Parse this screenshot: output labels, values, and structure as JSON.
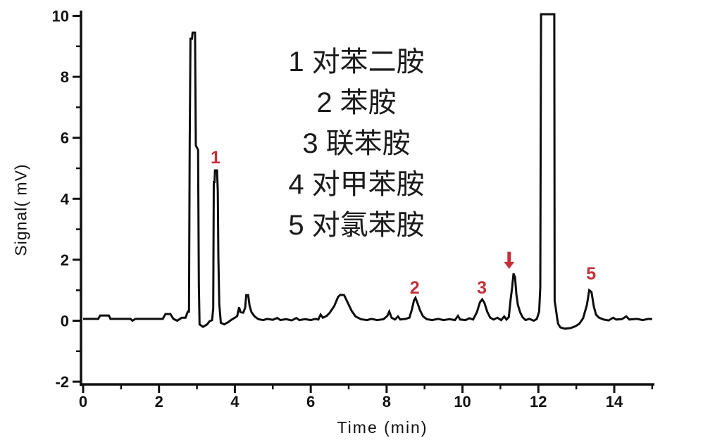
{
  "figure": {
    "background": "#ffffff",
    "trace_color": "#0d0d0d",
    "axis_color": "#111111",
    "annotation_color": "#c43039"
  },
  "legend": {
    "lines": [
      "1 对苯二胺",
      "2 苯胺",
      "3 联苯胺",
      "4 对甲苯胺",
      "5 对氯苯胺"
    ]
  },
  "chart_data": {
    "type": "line",
    "title": "",
    "xlabel": "Time (min)",
    "ylabel": "Signal( mV)",
    "xlim": [
      0,
      15
    ],
    "ylim": [
      -2,
      10
    ],
    "grid": false,
    "legend_position": "upper-center",
    "x_major_ticks": [
      0,
      2,
      4,
      6,
      8,
      10,
      12,
      14
    ],
    "x_minor_ticks": [
      1,
      3,
      5,
      7,
      9,
      11,
      13,
      15
    ],
    "y_major_ticks": [
      -2,
      0,
      2,
      4,
      6,
      8,
      10
    ],
    "y_minor_ticks": [
      -1,
      1,
      3,
      5,
      7,
      9
    ],
    "peaks": [
      {
        "label": "1",
        "compound": "对苯二胺",
        "time_min": 3.5,
        "height_mv": 4.95
      },
      {
        "label": "2",
        "compound": "苯胺",
        "time_min": 8.76,
        "height_mv": 0.75
      },
      {
        "label": "3",
        "compound": "联苯胺",
        "time_min": 10.52,
        "height_mv": 0.7
      },
      {
        "label": "4",
        "compound": "对甲苯胺",
        "time_min": 11.35,
        "height_mv": 1.55
      },
      {
        "label": "5",
        "compound": "对氯苯胺",
        "time_min": 13.35,
        "height_mv": 1.0
      }
    ],
    "unlabeled_major_peaks": [
      {
        "time_min": 2.95,
        "height_mv": 9.45
      },
      {
        "time_min": 12.25,
        "height_mv": "off-scale (>10)"
      }
    ],
    "annotations": [
      {
        "kind": "text",
        "text": "1",
        "t": 3.49,
        "mv": 5.16
      },
      {
        "kind": "text",
        "text": "2",
        "t": 8.74,
        "mv": 0.89
      },
      {
        "kind": "text",
        "text": "3",
        "t": 10.51,
        "mv": 0.89
      },
      {
        "kind": "arrow_down",
        "for_peak": "4",
        "t": 11.23,
        "mv_tip": 1.7,
        "mv_tail": 2.26
      },
      {
        "kind": "text",
        "text": "5",
        "t": 13.39,
        "mv": 1.35
      }
    ],
    "series": [
      {
        "name": "chromatogram",
        "points": [
          [
            0,
            0.06
          ],
          [
            0.4,
            0.06
          ],
          [
            0.45,
            0.17
          ],
          [
            0.68,
            0.17
          ],
          [
            0.72,
            0.06
          ],
          [
            1.25,
            0.06
          ],
          [
            1.3,
            0.0
          ],
          [
            1.38,
            0.06
          ],
          [
            2.1,
            0.06
          ],
          [
            2.17,
            0.22
          ],
          [
            2.3,
            0.22
          ],
          [
            2.38,
            0.06
          ],
          [
            2.48,
            0.0
          ],
          [
            2.6,
            0.1
          ],
          [
            2.7,
            0.1
          ],
          [
            2.76,
            0.3
          ],
          [
            2.79,
            0.3
          ],
          [
            2.81,
            5.75
          ],
          [
            2.83,
            9.25
          ],
          [
            2.87,
            9.25
          ],
          [
            2.885,
            9.45
          ],
          [
            2.95,
            9.45
          ],
          [
            2.97,
            5.75
          ],
          [
            3.03,
            5.6
          ],
          [
            3.05,
            1.2
          ],
          [
            3.07,
            -0.12
          ],
          [
            3.16,
            -0.2
          ],
          [
            3.27,
            -0.12
          ],
          [
            3.33,
            -0.02
          ],
          [
            3.4,
            0.02
          ],
          [
            3.43,
            0.4
          ],
          [
            3.445,
            4.55
          ],
          [
            3.465,
            4.55
          ],
          [
            3.475,
            4.93
          ],
          [
            3.53,
            4.93
          ],
          [
            3.55,
            4.25
          ],
          [
            3.565,
            2.1
          ],
          [
            3.59,
            0.55
          ],
          [
            3.63,
            -0.07
          ],
          [
            3.72,
            -0.12
          ],
          [
            3.82,
            -0.05
          ],
          [
            3.92,
            0.04
          ],
          [
            4.0,
            0.1
          ],
          [
            4.06,
            0.15
          ],
          [
            4.11,
            0.44
          ],
          [
            4.15,
            0.28
          ],
          [
            4.22,
            0.26
          ],
          [
            4.27,
            0.42
          ],
          [
            4.3,
            0.84
          ],
          [
            4.35,
            0.84
          ],
          [
            4.39,
            0.48
          ],
          [
            4.44,
            0.28
          ],
          [
            4.52,
            0.14
          ],
          [
            4.62,
            0.05
          ],
          [
            4.75,
            0.02
          ],
          [
            4.85,
            0.06
          ],
          [
            5.0,
            0.03
          ],
          [
            5.12,
            0.09
          ],
          [
            5.2,
            0.02
          ],
          [
            5.35,
            0.05
          ],
          [
            5.5,
            0.01
          ],
          [
            5.62,
            0.09
          ],
          [
            5.7,
            0.02
          ],
          [
            5.85,
            0.05
          ],
          [
            6.0,
            0.02
          ],
          [
            6.12,
            0.06
          ],
          [
            6.2,
            0.04
          ],
          [
            6.26,
            0.2
          ],
          [
            6.32,
            0.1
          ],
          [
            6.42,
            0.16
          ],
          [
            6.5,
            0.26
          ],
          [
            6.62,
            0.48
          ],
          [
            6.72,
            0.78
          ],
          [
            6.78,
            0.85
          ],
          [
            6.88,
            0.84
          ],
          [
            6.98,
            0.58
          ],
          [
            7.08,
            0.32
          ],
          [
            7.18,
            0.14
          ],
          [
            7.32,
            0.05
          ],
          [
            7.48,
            0.02
          ],
          [
            7.6,
            0.06
          ],
          [
            7.75,
            0.02
          ],
          [
            7.92,
            0.05
          ],
          [
            8.02,
            0.16
          ],
          [
            8.07,
            0.3
          ],
          [
            8.13,
            0.1
          ],
          [
            8.22,
            0.04
          ],
          [
            8.3,
            0.14
          ],
          [
            8.36,
            0.04
          ],
          [
            8.5,
            0.06
          ],
          [
            8.6,
            0.1
          ],
          [
            8.67,
            0.38
          ],
          [
            8.72,
            0.66
          ],
          [
            8.76,
            0.75
          ],
          [
            8.82,
            0.56
          ],
          [
            8.88,
            0.34
          ],
          [
            8.96,
            0.14
          ],
          [
            9.06,
            0.05
          ],
          [
            9.2,
            0.02
          ],
          [
            9.36,
            0.06
          ],
          [
            9.5,
            0.02
          ],
          [
            9.66,
            0.05
          ],
          [
            9.8,
            0.02
          ],
          [
            9.88,
            0.16
          ],
          [
            9.94,
            0.04
          ],
          [
            10.08,
            0.02
          ],
          [
            10.18,
            0.08
          ],
          [
            10.28,
            0.04
          ],
          [
            10.38,
            0.28
          ],
          [
            10.46,
            0.6
          ],
          [
            10.52,
            0.7
          ],
          [
            10.58,
            0.58
          ],
          [
            10.65,
            0.3
          ],
          [
            10.73,
            0.1
          ],
          [
            10.82,
            0.04
          ],
          [
            10.92,
            0.1
          ],
          [
            11.02,
            0.02
          ],
          [
            11.1,
            0.14
          ],
          [
            11.16,
            0.04
          ],
          [
            11.22,
            0.12
          ],
          [
            11.27,
            0.72
          ],
          [
            11.31,
            1.1
          ],
          [
            11.345,
            1.55
          ],
          [
            11.385,
            1.42
          ],
          [
            11.42,
            0.88
          ],
          [
            11.46,
            0.52
          ],
          [
            11.52,
            0.28
          ],
          [
            11.58,
            0.12
          ],
          [
            11.66,
            0.02
          ],
          [
            11.76,
            0.06
          ],
          [
            11.88,
            0.0
          ],
          [
            11.96,
            0.06
          ],
          [
            12.02,
            0.3
          ],
          [
            12.05,
            1.1
          ],
          [
            12.07,
            10.05
          ],
          [
            12.42,
            10.05
          ],
          [
            12.43,
            0.65
          ],
          [
            12.46,
            0.4
          ],
          [
            12.49,
            0.12
          ],
          [
            12.52,
            -0.1
          ],
          [
            12.58,
            -0.22
          ],
          [
            12.7,
            -0.26
          ],
          [
            12.85,
            -0.24
          ],
          [
            12.98,
            -0.18
          ],
          [
            13.08,
            -0.1
          ],
          [
            13.18,
            0.08
          ],
          [
            13.28,
            0.52
          ],
          [
            13.34,
            1.0
          ],
          [
            13.4,
            0.94
          ],
          [
            13.46,
            0.48
          ],
          [
            13.52,
            0.2
          ],
          [
            13.6,
            0.1
          ],
          [
            13.72,
            0.04
          ],
          [
            13.85,
            0.01
          ],
          [
            13.97,
            0.1
          ],
          [
            14.05,
            0.04
          ],
          [
            14.2,
            0.05
          ],
          [
            14.32,
            0.14
          ],
          [
            14.4,
            0.04
          ],
          [
            14.6,
            0.06
          ],
          [
            14.75,
            0.02
          ],
          [
            14.9,
            0.06
          ],
          [
            15.0,
            0.05
          ]
        ]
      }
    ]
  }
}
